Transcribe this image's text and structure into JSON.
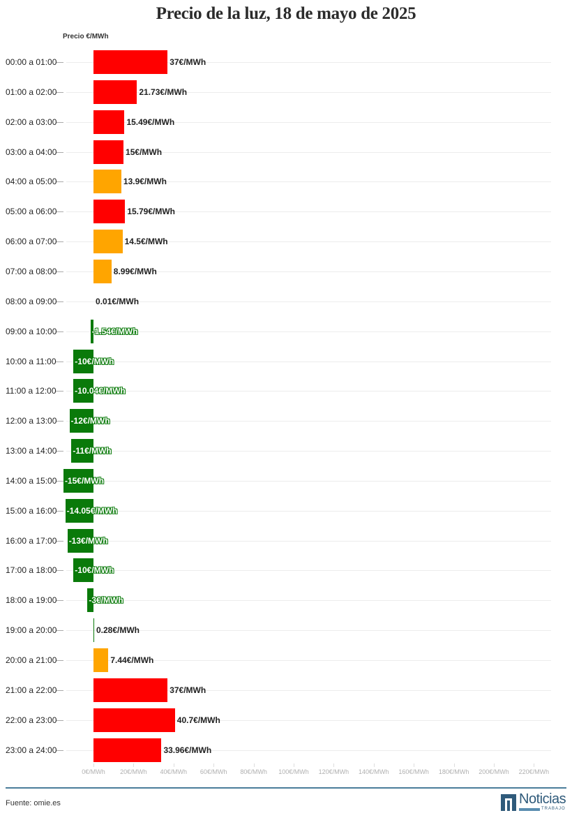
{
  "header": {
    "title": "Precio de la luz, 18 de mayo de 2025"
  },
  "footer": {
    "source": "Fuente: omie.es",
    "logo_text": "Noticias",
    "logo_sub": "TRABAJO"
  },
  "colors": {
    "high": "#ff0000",
    "mid": "#ffa500",
    "negative": "#0a7a0a",
    "low": "#0a7a0a"
  },
  "chart_data": {
    "type": "bar",
    "orientation": "horizontal",
    "title": "Precio de la luz, 18 de mayo de 2025",
    "ylabel": "Precio €/MWh",
    "xlabel": "",
    "xlim": [
      -15,
      220
    ],
    "grid": true,
    "categories": [
      "00:00 a 01:00",
      "01:00 a 02:00",
      "02:00 a 03:00",
      "03:00 a 04:00",
      "04:00 a 05:00",
      "05:00 a 06:00",
      "06:00 a 07:00",
      "07:00 a 08:00",
      "08:00 a 09:00",
      "09:00 a 10:00",
      "10:00 a 11:00",
      "11:00 a 12:00",
      "12:00 a 13:00",
      "13:00 a 14:00",
      "14:00 a 15:00",
      "15:00 a 16:00",
      "16:00 a 17:00",
      "17:00 a 18:00",
      "18:00 a 19:00",
      "19:00 a 20:00",
      "20:00 a 21:00",
      "21:00 a 22:00",
      "22:00 a 23:00",
      "23:00 a 24:00"
    ],
    "values": [
      37,
      21.73,
      15.49,
      15,
      13.9,
      15.79,
      14.5,
      8.99,
      0.01,
      -1.54,
      -10,
      -10.04,
      -12,
      -11,
      -15,
      -14.05,
      -13,
      -10,
      -3,
      0.28,
      7.44,
      37,
      40.7,
      33.96
    ],
    "value_labels": [
      "37€/MWh",
      "21.73€/MWh",
      "15.49€/MWh",
      "15€/MWh",
      "13.9€/MWh",
      "15.79€/MWh",
      "14.5€/MWh",
      "8.99€/MWh",
      "0.01€/MWh",
      "-1.54€/MWh",
      "-10€/MWh",
      "-10.04€/MWh",
      "-12€/MWh",
      "-11€/MWh",
      "-15€/MWh",
      "-14.05€/MWh",
      "-13€/MWh",
      "-10€/MWh",
      "-3€/MWh",
      "0.28€/MWh",
      "7.44€/MWh",
      "37€/MWh",
      "40.7€/MWh",
      "33.96€/MWh"
    ],
    "bar_colors": [
      "high",
      "high",
      "high",
      "high",
      "mid",
      "high",
      "mid",
      "mid",
      "low",
      "negative",
      "negative",
      "negative",
      "negative",
      "negative",
      "negative",
      "negative",
      "negative",
      "negative",
      "negative",
      "low",
      "mid",
      "high",
      "high",
      "high"
    ],
    "x_ticks": [
      "0€/MWh",
      "20€/MWh",
      "40€/MWh",
      "60€/MWh",
      "80€/MWh",
      "100€/MWh",
      "120€/MWh",
      "140€/MWh",
      "160€/MWh",
      "180€/MWh",
      "200€/MWh",
      "220€/MWh"
    ],
    "x_tick_values": [
      0,
      20,
      40,
      60,
      80,
      100,
      120,
      140,
      160,
      180,
      200,
      220
    ]
  }
}
